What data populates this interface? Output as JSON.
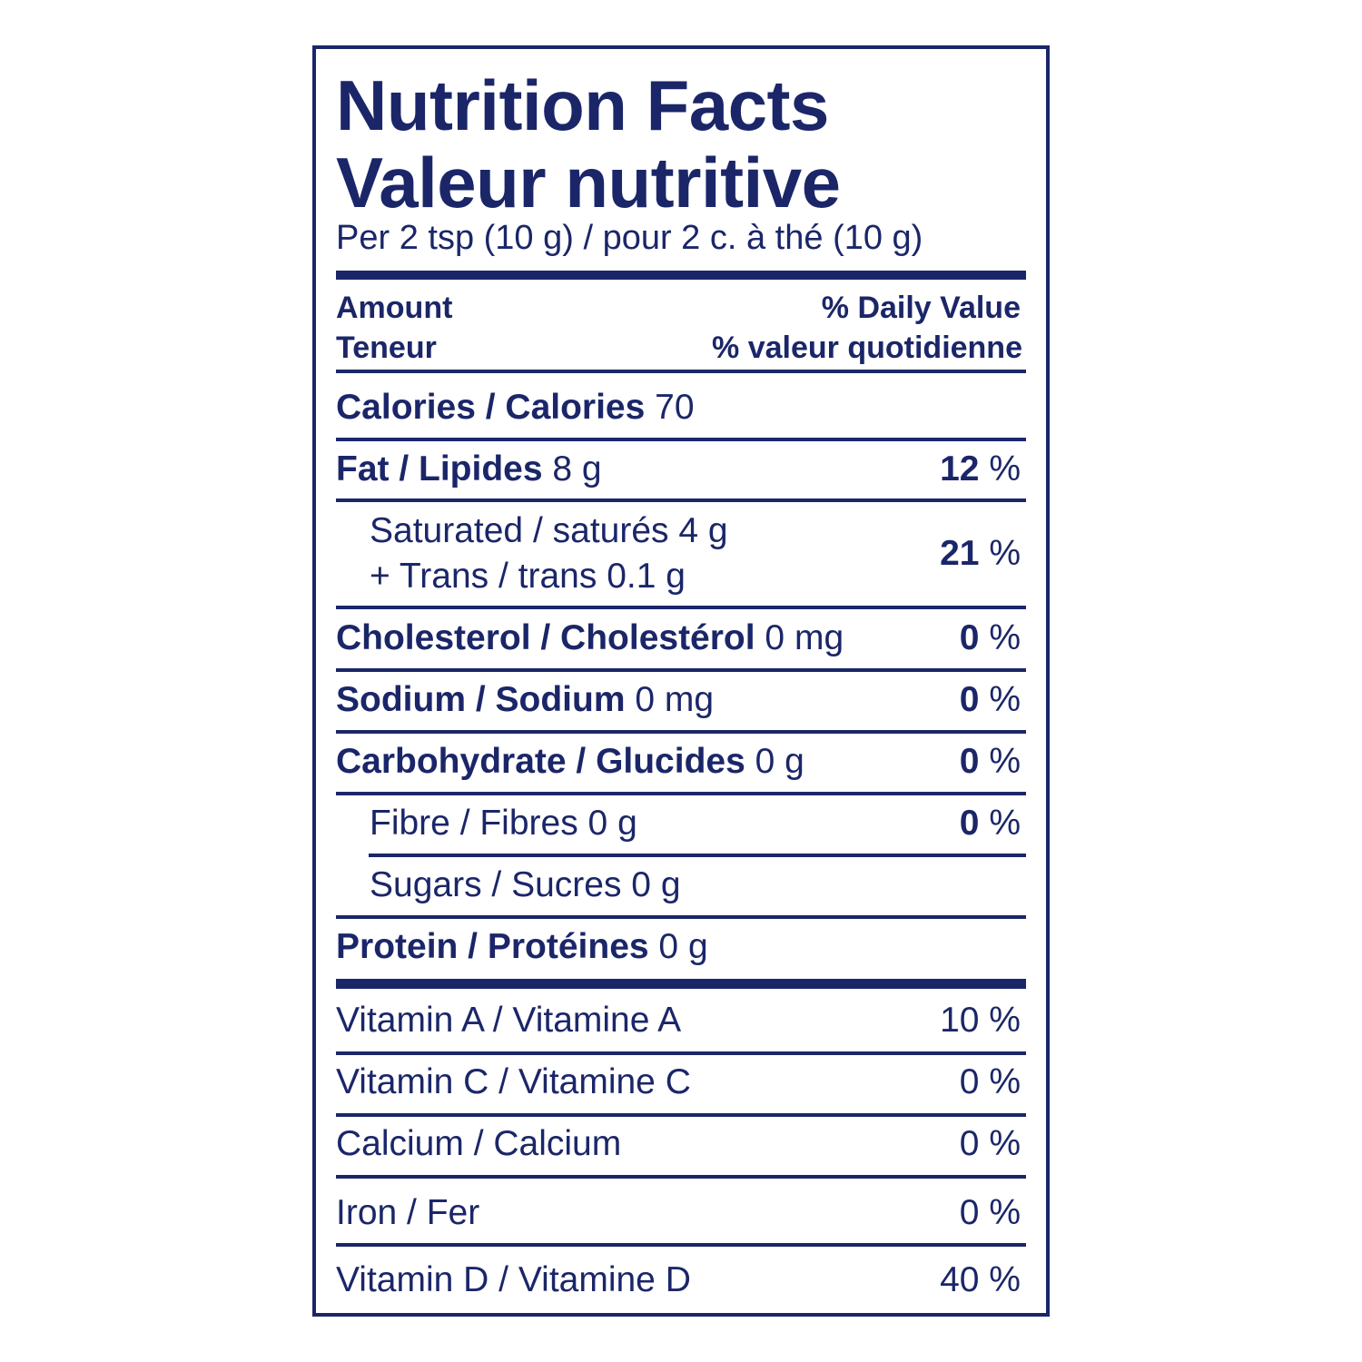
{
  "title_en": "Nutrition Facts",
  "title_fr": "Valeur nutritive",
  "serving": "Per 2 tsp (10 g) / pour 2 c. à thé (10 g)",
  "header": {
    "amount_en": "Amount",
    "amount_fr": "Teneur",
    "dv_en": "% Daily Value",
    "dv_fr": "% valeur quotidienne"
  },
  "pct": " %",
  "rows": {
    "calories": {
      "label": "Calories / Calories",
      "amount": " 70"
    },
    "fat": {
      "label": "Fat / Lipides",
      "amount": " 8 g",
      "dv": "12"
    },
    "saturated": {
      "label": "Saturated / saturés 4 g",
      "label2": "+ Trans / trans 0.1 g",
      "dv": "21"
    },
    "cholesterol": {
      "label": "Cholesterol / Cholestérol",
      "amount": " 0 mg",
      "dv": "0"
    },
    "sodium": {
      "label": "Sodium / Sodium",
      "amount": " 0 mg",
      "dv": "0"
    },
    "carbohydrate": {
      "label": "Carbohydrate / Glucides",
      "amount": " 0 g",
      "dv": "0"
    },
    "fibre": {
      "label": "Fibre / Fibres 0 g",
      "dv": "0"
    },
    "sugars": {
      "label": "Sugars / Sucres 0 g"
    },
    "protein": {
      "label": "Protéines",
      "label_en": "Protein / ",
      "amount": " 0 g"
    }
  },
  "vitamins": [
    {
      "label": "Vitamin A / Vitamine A",
      "dv": "10 %"
    },
    {
      "label": "Vitamin C / Vitamine C",
      "dv": "0 %"
    },
    {
      "label": "Calcium / Calcium",
      "dv": "0 %"
    },
    {
      "label": "Iron / Fer",
      "dv": "0 %"
    },
    {
      "label": "Vitamin D / Vitamine D",
      "dv": "40 %"
    }
  ],
  "colors": {
    "ink": "#1b2669"
  }
}
